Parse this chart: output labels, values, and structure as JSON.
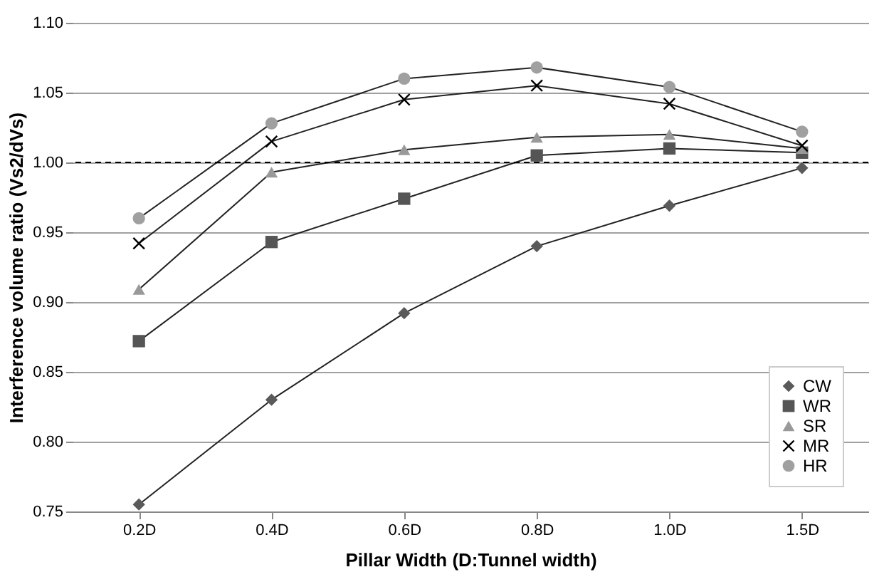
{
  "chart_data": {
    "type": "line",
    "xlabel": "Pillar Width (D:Tunnel width)",
    "ylabel": "Interference volume ratio (Vs2/dVs)",
    "categories": [
      "0.2D",
      "0.4D",
      "0.6D",
      "0.8D",
      "1.0D",
      "1.5D"
    ],
    "series": [
      {
        "name": "CW",
        "color": "#5a5a5a",
        "marker": "diamond",
        "values": [
          0.755,
          0.83,
          0.892,
          0.94,
          0.969,
          0.996
        ]
      },
      {
        "name": "WR",
        "color": "#555555",
        "marker": "square",
        "values": [
          0.872,
          0.943,
          0.974,
          1.005,
          1.01,
          1.007
        ]
      },
      {
        "name": "SR",
        "color": "#999999",
        "marker": "triangle",
        "values": [
          0.909,
          0.993,
          1.009,
          1.018,
          1.02,
          1.01
        ]
      },
      {
        "name": "MR",
        "color": "#000000",
        "marker": "cross",
        "values": [
          0.942,
          1.015,
          1.045,
          1.055,
          1.042,
          1.012
        ]
      },
      {
        "name": "HR",
        "color": "#a0a0a0",
        "marker": "circle",
        "values": [
          0.96,
          1.028,
          1.06,
          1.068,
          1.054,
          1.022
        ]
      }
    ],
    "ylim": [
      0.75,
      1.1
    ],
    "yticks": [
      {
        "value": 0.75,
        "label": "0.75"
      },
      {
        "value": 0.8,
        "label": "0.80"
      },
      {
        "value": 0.85,
        "label": "0.85"
      },
      {
        "value": 0.9,
        "label": "0.90"
      },
      {
        "value": 0.95,
        "label": "0.95"
      },
      {
        "value": 1.0,
        "label": "1.00"
      },
      {
        "value": 1.05,
        "label": "1.05"
      },
      {
        "value": 1.1,
        "label": "1.10"
      }
    ],
    "ref_lines": [
      {
        "axis": "y",
        "value": 1.0,
        "color": "#000000",
        "line_style": "dashed"
      }
    ],
    "grid": "y",
    "legend": "bottom right",
    "line_style": "solid"
  }
}
